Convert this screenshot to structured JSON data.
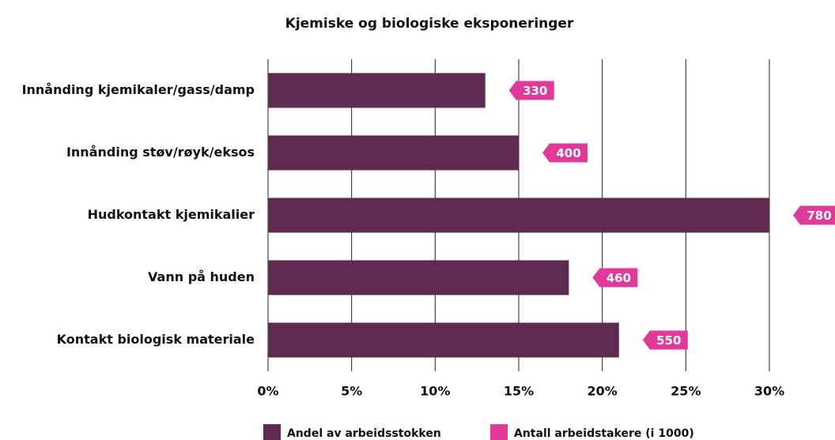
{
  "chart_data": {
    "type": "bar",
    "orientation": "horizontal",
    "title": "Kjemiske og biologiske eksponeringer",
    "categories": [
      "Innånding kjemikaler/gass/damp",
      "Innånding støv/røyk/eksos",
      "Hudkontakt kjemikalier",
      "Vann på huden",
      "Kontakt biologisk materiale"
    ],
    "series": [
      {
        "name": "Andel av arbeidsstokken",
        "color": "#5e2a4f",
        "values": [
          13,
          15,
          30,
          18,
          21
        ]
      },
      {
        "name": "Antall arbeidstakere (i 1000)",
        "color": "#e0399a",
        "values": [
          330,
          400,
          780,
          460,
          550
        ]
      }
    ],
    "xlim": [
      0,
      30
    ],
    "xticks": [
      {
        "value": 0,
        "label": "0%"
      },
      {
        "value": 5,
        "label": "5%"
      },
      {
        "value": 10,
        "label": "10%"
      },
      {
        "value": 15,
        "label": "15%"
      },
      {
        "value": 20,
        "label": "20%"
      },
      {
        "value": 25,
        "label": "25%"
      },
      {
        "value": 30,
        "label": "30%"
      }
    ],
    "grid": true,
    "legend": "bottom"
  }
}
